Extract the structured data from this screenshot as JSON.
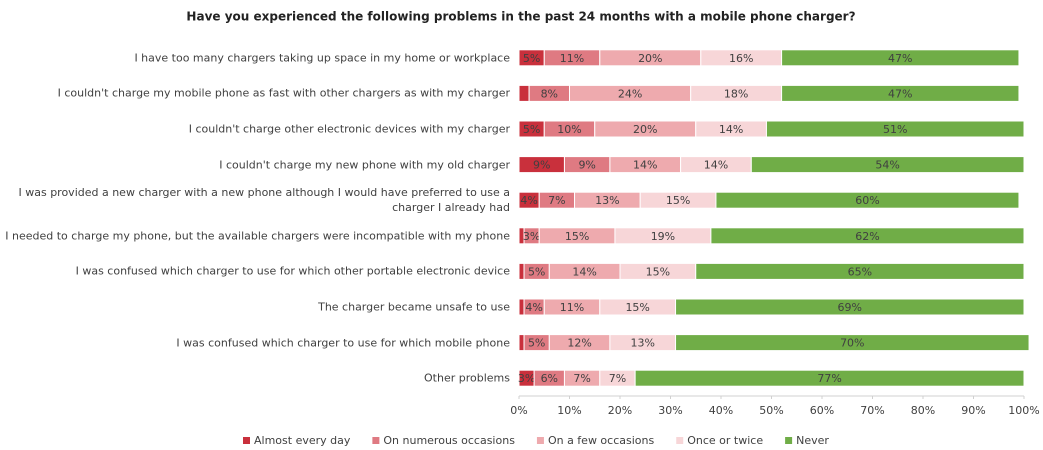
{
  "chart_data": {
    "type": "stacked_bar_h",
    "title": "Have you experienced the following problems in the past 24 months with a mobile phone charger?",
    "categories": [
      "I have too many chargers taking up space in my home or workplace",
      "I couldn't charge my mobile phone as fast with other chargers as with my charger",
      "I couldn't charge other electronic devices with my charger",
      "I couldn't charge my new phone with my old charger",
      "I was provided a new charger with a new phone although I would have preferred to use a charger I already had",
      "I needed to charge my phone, but the available chargers were incompatible with my phone",
      "I was confused which charger to use for which other portable electronic device",
      "The charger became unsafe to use",
      "I was confused which charger to use for which mobile phone",
      "Other problems"
    ],
    "series": [
      {
        "name": "Almost every day",
        "color": "#c9303c",
        "values": [
          5,
          2,
          5,
          9,
          4,
          1,
          1,
          1,
          1,
          3
        ],
        "value_labels": [
          "5%",
          null,
          "5%",
          "9%",
          "4%",
          null,
          null,
          null,
          null,
          "3%"
        ]
      },
      {
        "name": "On numerous occasions",
        "color": "#df7a82",
        "values": [
          11,
          8,
          10,
          9,
          7,
          3,
          5,
          4,
          5,
          6
        ],
        "value_labels": [
          "11%",
          "8%",
          "10%",
          "9%",
          "7%",
          "3%",
          "5%",
          "4%",
          "5%",
          "6%"
        ]
      },
      {
        "name": "On a few occasions",
        "color": "#eeaaae",
        "values": [
          20,
          24,
          20,
          14,
          13,
          15,
          14,
          11,
          12,
          7
        ],
        "value_labels": [
          "20%",
          "24%",
          "20%",
          "14%",
          "13%",
          "15%",
          "14%",
          "11%",
          "12%",
          "7%"
        ]
      },
      {
        "name": "Once or twice",
        "color": "#f7d6d8",
        "values": [
          16,
          18,
          14,
          14,
          15,
          19,
          15,
          15,
          13,
          7
        ],
        "value_labels": [
          "16%",
          "18%",
          "14%",
          "14%",
          "15%",
          "19%",
          "15%",
          "15%",
          "13%",
          "7%"
        ]
      },
      {
        "name": "Never",
        "color": "#70ad47",
        "values": [
          47,
          47,
          51,
          54,
          60,
          62,
          65,
          69,
          70,
          77
        ],
        "value_labels": [
          "47%",
          "47%",
          "51%",
          "54%",
          "60%",
          "62%",
          "65%",
          "69%",
          "70%",
          "77%"
        ]
      }
    ],
    "xlim": [
      0,
      100
    ],
    "xticks": [
      {
        "value": 0,
        "label": "0%"
      },
      {
        "value": 10,
        "label": "10%"
      },
      {
        "value": 20,
        "label": "20%"
      },
      {
        "value": 30,
        "label": "30%"
      },
      {
        "value": 40,
        "label": "40%"
      },
      {
        "value": 50,
        "label": "50%"
      },
      {
        "value": 60,
        "label": "60%"
      },
      {
        "value": 70,
        "label": "70%"
      },
      {
        "value": 80,
        "label": "80%"
      },
      {
        "value": 90,
        "label": "90%"
      },
      {
        "value": 100,
        "label": "100%"
      }
    ],
    "legend": "bottom"
  }
}
